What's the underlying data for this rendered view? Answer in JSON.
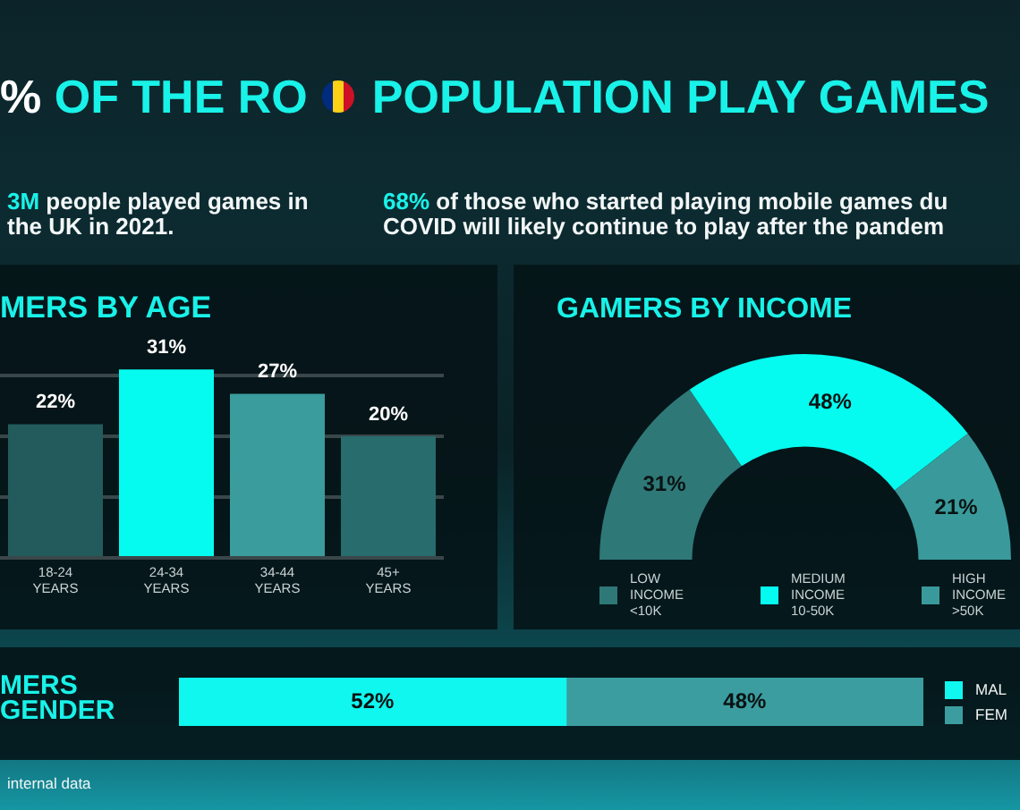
{
  "chart_data": [
    {
      "type": "other",
      "title": "% OF THE RO POPULATION PLAY GAMES",
      "annotations": [
        "3M people played games in the UK in 2021.",
        "68% of those who started playing mobile games du COVID will likely continue to play after the pandem",
        "internal data"
      ]
    },
    {
      "type": "bar",
      "title": "MERS BY AGE",
      "categories": [
        "18-24 YEARS",
        "24-34 YEARS",
        "34-44 YEARS",
        "45+ YEARS"
      ],
      "values": [
        22,
        31,
        27,
        20
      ],
      "colors": [
        "#235b5c",
        "#05fbef",
        "#3a9c9c",
        "#286c6d"
      ],
      "value_labels": [
        "22%",
        "31%",
        "27%",
        "20%"
      ],
      "yticks": [
        {
          "value": 0,
          "label": null
        },
        {
          "value": 10,
          "label": null
        },
        {
          "value": 20,
          "label": null
        },
        {
          "value": 30,
          "label": null
        }
      ],
      "grid": "y",
      "tick_labels": "x"
    },
    {
      "type": "donut",
      "title": "GAMERS BY INCOME",
      "categories": [
        "LOW INCOME <10K",
        "MEDIUM INCOME 10-50K",
        "HIGH INCOME >50K"
      ],
      "values": [
        31,
        48,
        21
      ],
      "colors": [
        "#2f7878",
        "#05fbef",
        "#3a9a9b"
      ],
      "value_labels": [
        "31%",
        "48%",
        "21%"
      ],
      "legend": "bottom"
    },
    {
      "type": "bar",
      "orientation": "horizontal",
      "stacked": true,
      "title": "MERS GENDER",
      "categories": [
        null
      ],
      "series": [
        {
          "name": "MAL",
          "color": "#0ff7ef",
          "values": [
            52
          ],
          "value_labels": [
            "52%"
          ]
        },
        {
          "name": "FEM",
          "color": "#3b9d9f",
          "values": [
            48
          ],
          "value_labels": [
            "48%"
          ]
        }
      ],
      "xlim": [
        0,
        100
      ],
      "tick_labels": false,
      "legend": "right"
    }
  ]
}
